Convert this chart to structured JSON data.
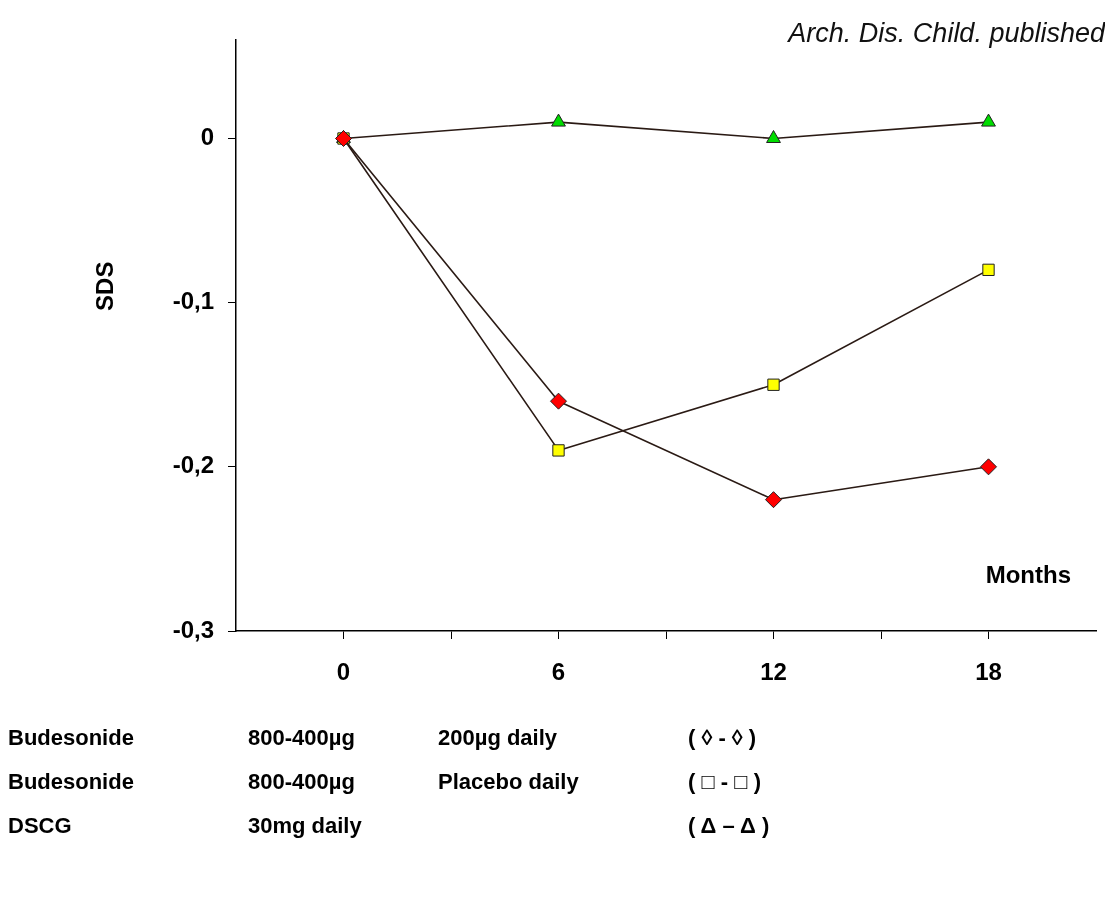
{
  "chart_data": {
    "type": "line",
    "xlabel": "Months",
    "ylabel": "SDS",
    "x": [
      0,
      6,
      12,
      18
    ],
    "series": [
      {
        "color": "#ff0000",
        "marker": "diamond",
        "values": [
          0,
          -0.16,
          -0.22,
          -0.2
        ]
      },
      {
        "color": "#ffff00",
        "marker": "square",
        "values": [
          0,
          -0.19,
          -0.15,
          -0.08
        ]
      },
      {
        "color": "#00dd00",
        "marker": "triangle",
        "values": [
          0,
          0.01,
          0,
          0.01
        ]
      }
    ],
    "xlim": [
      -3,
      21
    ],
    "xticks": [
      0,
      {
        "value": 3,
        "label": null
      },
      6,
      {
        "value": 9,
        "label": null
      },
      12,
      {
        "value": 15,
        "label": null
      },
      18
    ],
    "ylim": [
      -0.3,
      0.06
    ],
    "yticks": [
      {
        "value": -0.3,
        "label": "-0,3"
      },
      {
        "value": -0.2,
        "label": "-0,2"
      },
      {
        "value": -0.1,
        "label": "-0,1"
      },
      0
    ],
    "grid": false,
    "legend": false,
    "annotations": [
      "Arch. Dis. Child. published",
      "Budesonide\t800-400µg\t200µg daily\t( ◊ - ◊ )",
      "Budesonide\t800-400µg\tPlacebo daily\t( □ - □ )",
      "DSCG\t30mg daily\t\t( Δ – Δ )"
    ]
  }
}
